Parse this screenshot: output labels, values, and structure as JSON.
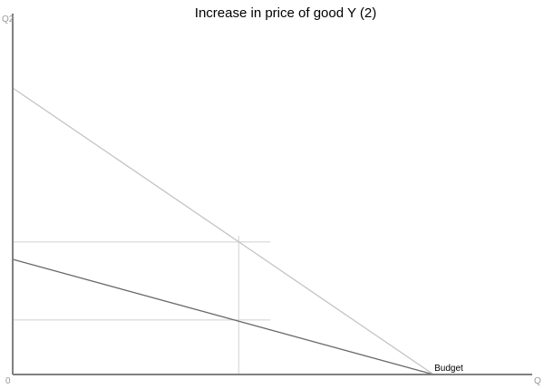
{
  "chart_data": {
    "type": "line",
    "title": "Increase in price of good Y (2)",
    "xlabel": "Q",
    "ylabel": "Q2",
    "origin_label": "0",
    "xlim": [
      0,
      100
    ],
    "ylim": [
      0,
      100
    ],
    "grid": false,
    "series": [
      {
        "name": "Budget",
        "color": "#c4c4c4",
        "x": [
          0,
          81
        ],
        "y": [
          79.4,
          0
        ]
      },
      {
        "color": "#6a6a6a",
        "x": [
          0,
          81
        ],
        "y": [
          31.9,
          0
        ]
      }
    ],
    "guides": {
      "horizontal": [
        {
          "y": 36.7,
          "x": [
            0,
            49.6
          ]
        },
        {
          "y": 15.1,
          "x": [
            0,
            49.6
          ]
        }
      ],
      "vertical": [
        {
          "x": 43.5,
          "y": [
            0,
            38.4
          ]
        }
      ],
      "color": "#d0d0d0"
    },
    "annotations": [
      {
        "text": "Budget",
        "x": 81,
        "y": 0
      }
    ],
    "axis_color": "#808080"
  }
}
